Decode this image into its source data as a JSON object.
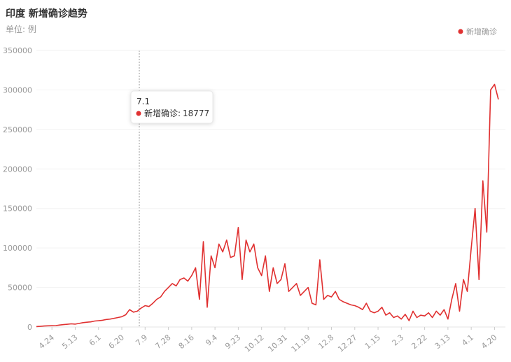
{
  "chart_data": {
    "type": "line",
    "title": "印度 新增确诊趋势",
    "subtitle": "单位: 例",
    "categories": [
      null,
      null,
      null,
      null,
      "4.24",
      null,
      null,
      null,
      null,
      null,
      "5.13",
      null,
      null,
      null,
      null,
      null,
      "6.1",
      null,
      null,
      null,
      null,
      null,
      "6.20",
      null,
      null,
      null,
      null,
      null,
      "7.9",
      null,
      null,
      null,
      null,
      null,
      "7.28",
      null,
      null,
      null,
      null,
      null,
      "8.16",
      null,
      null,
      null,
      null,
      null,
      "9.4",
      null,
      null,
      null,
      null,
      null,
      "9.23",
      null,
      null,
      null,
      null,
      null,
      "10.12",
      null,
      null,
      null,
      null,
      null,
      "10.31",
      null,
      null,
      null,
      null,
      null,
      "11.19",
      null,
      null,
      null,
      null,
      null,
      "12.8",
      null,
      null,
      null,
      null,
      null,
      "12.27",
      null,
      null,
      null,
      null,
      null,
      "1.15",
      null,
      null,
      null,
      null,
      null,
      "2.3",
      null,
      null,
      null,
      null,
      null,
      "2.22",
      null,
      null,
      null,
      null,
      null,
      "3.13",
      null,
      null,
      null,
      null,
      null,
      "4.1",
      null,
      null,
      null,
      null,
      null,
      "4.20",
      null
    ],
    "series": [
      {
        "name": "新增确诊",
        "color": "#e03030",
        "values": [
          500,
          800,
          1200,
          1500,
          1600,
          1800,
          2500,
          3000,
          3500,
          4000,
          3600,
          4500,
          5500,
          6000,
          6500,
          7500,
          8000,
          8500,
          9500,
          10000,
          11000,
          12000,
          13000,
          15500,
          22000,
          18777,
          20000,
          24000,
          27000,
          26000,
          30000,
          35000,
          38000,
          45000,
          50000,
          55000,
          52000,
          60000,
          62000,
          58000,
          65000,
          75000,
          35000,
          108000,
          25000,
          90000,
          75000,
          105000,
          95000,
          110000,
          88000,
          90000,
          126000,
          60000,
          110000,
          95000,
          105000,
          75000,
          65000,
          90000,
          45000,
          75000,
          55000,
          60000,
          80000,
          45000,
          50000,
          55000,
          40000,
          45000,
          50000,
          30000,
          28000,
          85000,
          35000,
          40000,
          38000,
          45000,
          35000,
          32000,
          30000,
          28000,
          27000,
          25000,
          22000,
          30000,
          20000,
          18000,
          20000,
          25000,
          15000,
          18000,
          12000,
          14000,
          10000,
          16000,
          8000,
          20000,
          12000,
          15000,
          14000,
          18000,
          12000,
          20000,
          15000,
          22000,
          10000,
          35000,
          55000,
          20000,
          60000,
          45000,
          100000,
          150000,
          60000,
          185000,
          120000,
          300000,
          307000,
          288000
        ]
      }
    ],
    "ylim": [
      0,
      350000
    ],
    "yticks": [
      0,
      50000,
      100000,
      150000,
      200000,
      250000,
      300000,
      350000
    ],
    "grid": true,
    "tooltip": {
      "title": "7.1",
      "label": "新增确诊:",
      "value": 18777
    }
  }
}
